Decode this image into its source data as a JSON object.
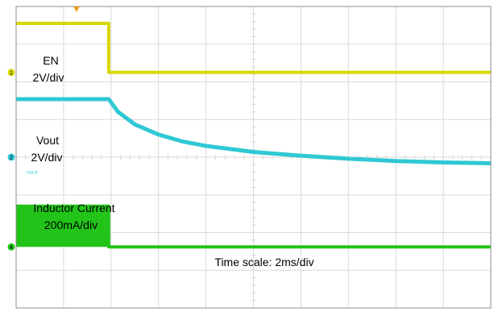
{
  "chart_data": {
    "type": "line",
    "title": "",
    "xlabel": "",
    "ylabel": "",
    "x_unit": "ms",
    "xlim": [
      0,
      20
    ],
    "grid": true,
    "grid_divisions": {
      "x": 10,
      "y": 8
    },
    "annotations": {
      "en_label_line1": "EN",
      "en_label_line2": "2V/div",
      "vout_label_line1": "Vout",
      "vout_label_line2": "2V/div",
      "inductor_label_line1": "Inductor Current",
      "inductor_label_line2": "200mA/div",
      "time_scale": "Time scale: 2ms/div",
      "vout_marker": "VOUT"
    },
    "channel_markers": [
      "1",
      "2",
      "4"
    ],
    "series": [
      {
        "id": "en",
        "color": "#d8d800",
        "points": [
          [
            0,
            3.55
          ],
          [
            3.9,
            3.55
          ],
          [
            3.9,
            2.25
          ],
          [
            20,
            2.25
          ]
        ]
      },
      {
        "id": "vout",
        "color": "#2fc8d4",
        "points": [
          [
            0,
            1.54
          ],
          [
            3.9,
            1.54
          ],
          [
            4.3,
            1.2
          ],
          [
            5,
            0.87
          ],
          [
            6,
            0.6
          ],
          [
            7,
            0.42
          ],
          [
            8,
            0.3
          ],
          [
            10,
            0.14
          ],
          [
            12,
            0.04
          ],
          [
            14,
            -0.04
          ],
          [
            16,
            -0.1
          ],
          [
            18,
            -0.14
          ],
          [
            20,
            -0.16
          ]
        ]
      },
      {
        "id": "inductor_current",
        "color": "#22c41a",
        "points": [
          [
            0,
            -1.3
          ],
          [
            3.9,
            -1.3
          ],
          [
            3.9,
            -2.38
          ],
          [
            20,
            -2.38
          ]
        ]
      }
    ]
  },
  "colors": {
    "grid": "#d9d9d9",
    "frame": "#8c8c8c",
    "trigger_marker": "#e8a020",
    "channel1": "#d8d800",
    "channel2": "#2fc8d4",
    "channel4": "#22c41a"
  }
}
